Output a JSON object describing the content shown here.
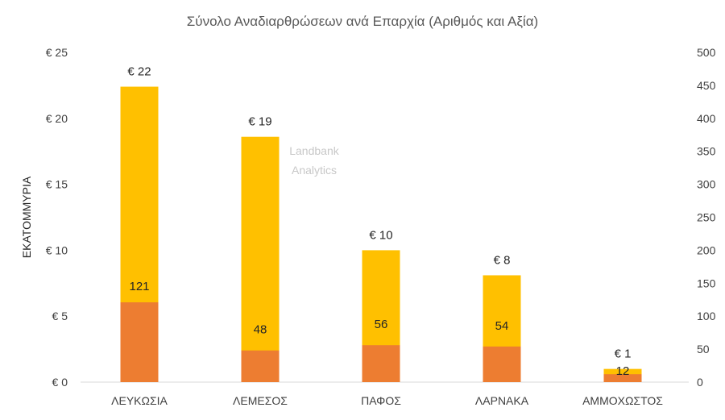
{
  "chart_data": {
    "type": "bar",
    "title": "Σύνολο Αναδιαρθρώσεων ανά Επαρχία (Αριθμός και Αξία)",
    "ylabel": "ΕΚΑΤΟΜΜΥΡΙΑ",
    "categories": [
      "ΛΕΥΚΩΣΙΑ",
      "ΛΕΜΕΣΟΣ",
      "ΠΑΦΟΣ",
      "ΛΑΡΝΑΚΑ",
      "ΑΜΜΟΧΩΣΤΟΣ"
    ],
    "series": [
      {
        "name": "Αξία",
        "axis": "left",
        "color": "#FFC000",
        "values": [
          22.4,
          18.6,
          10.0,
          8.1,
          1.0
        ],
        "labels": [
          "€ 22",
          "€ 19",
          "€ 10",
          "€ 8",
          "€ 1"
        ]
      },
      {
        "name": "Αριθμός",
        "axis": "right",
        "color": "#ED7D31",
        "values": [
          121,
          48,
          56,
          54,
          12
        ],
        "labels": [
          "121",
          "48",
          "56",
          "54",
          "12"
        ]
      }
    ],
    "y_left": {
      "ylim": [
        0,
        25
      ],
      "ticks": [
        0,
        5,
        10,
        15,
        20,
        25
      ],
      "tick_labels": [
        "€ 0",
        "€ 5",
        "€ 10",
        "€ 15",
        "€ 20",
        "€ 25"
      ]
    },
    "y_right": {
      "ylim": [
        0,
        500
      ],
      "ticks": [
        0,
        50,
        100,
        150,
        200,
        250,
        300,
        350,
        400,
        450,
        500
      ],
      "tick_labels": [
        "0",
        "50",
        "100",
        "150",
        "200",
        "250",
        "300",
        "350",
        "400",
        "450",
        "500"
      ]
    },
    "grid": false,
    "watermark": [
      "Landbank",
      "Analytics"
    ]
  }
}
